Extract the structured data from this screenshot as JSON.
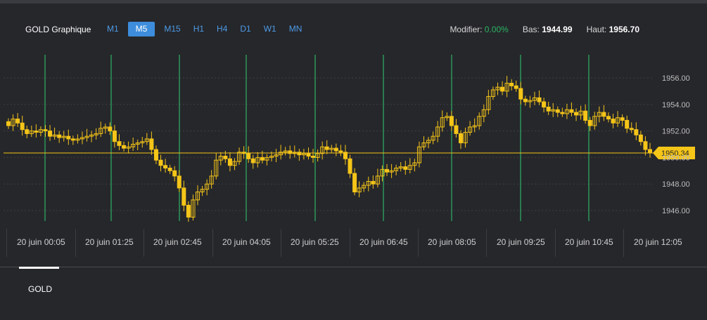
{
  "chart": {
    "title": "GOLD Graphique",
    "timeframes": [
      "M1",
      "M5",
      "M15",
      "H1",
      "H4",
      "D1",
      "W1",
      "MN"
    ],
    "active_timeframe": "M5",
    "stats": {
      "modifier_label": "Modifier:",
      "modifier_value": "0.00%",
      "low_label": "Bas:",
      "low_value": "1944.99",
      "high_label": "Haut:",
      "high_value": "1956.70"
    },
    "current_price": "1950.34",
    "price_axis_labels": [
      "1956.00",
      "1954.00",
      "1952.00",
      "1950.00",
      "1948.00",
      "1946.00"
    ],
    "date_labels": [
      "20 juin 00:05",
      "20 juin 01:25",
      "20 juin 02:45",
      "20 juin 04:05",
      "20 juin 05:25",
      "20 juin 06:45",
      "20 juin 08:05",
      "20 juin 09:25",
      "20 juin 10:45",
      "20 juin 12:05"
    ]
  },
  "tabs": [
    {
      "label": "GOLD"
    }
  ],
  "colors": {
    "background": "#26272b",
    "candle": "#f5c518",
    "current_line": "#f5c518",
    "session_line": "#2ecc71",
    "grid": "#3e3f44",
    "accent_blue": "#3d8ddc",
    "green_text": "#28b463"
  },
  "chart_data": {
    "type": "candlestick",
    "y_axis_ticks": [
      1946,
      1948,
      1950,
      1952,
      1954,
      1956
    ],
    "current_price": 1950.34,
    "close_series": [
      1952.4,
      1952.9,
      1952.6,
      1952.1,
      1951.8,
      1952.0,
      1951.9,
      1952.1,
      1952.0,
      1951.6,
      1951.7,
      1951.5,
      1951.6,
      1951.4,
      1951.3,
      1951.4,
      1951.5,
      1951.6,
      1951.7,
      1951.8,
      1952.2,
      1952.3,
      1952.0,
      1951.2,
      1950.9,
      1950.7,
      1950.8,
      1951.0,
      1951.1,
      1951.2,
      1951.4,
      1950.6,
      1949.8,
      1949.4,
      1949.2,
      1949.0,
      1948.6,
      1947.7,
      1946.4,
      1945.5,
      1946.8,
      1947.4,
      1947.6,
      1948.0,
      1948.6,
      1949.8,
      1950.1,
      1949.9,
      1949.4,
      1949.7,
      1950.4,
      1950.3,
      1949.9,
      1949.6,
      1950.0,
      1949.8,
      1950.0,
      1950.1,
      1950.2,
      1950.4,
      1950.5,
      1950.3,
      1950.4,
      1950.2,
      1950.3,
      1950.1,
      1950.0,
      1950.3,
      1950.8,
      1950.6,
      1950.7,
      1950.5,
      1950.4,
      1949.9,
      1948.8,
      1947.4,
      1947.7,
      1947.9,
      1948.2,
      1948.0,
      1948.6,
      1949.1,
      1948.9,
      1949.0,
      1949.2,
      1949.3,
      1949.1,
      1949.4,
      1949.6,
      1950.8,
      1951.1,
      1951.3,
      1951.6,
      1952.3,
      1953.0,
      1953.1,
      1952.4,
      1951.8,
      1951.1,
      1951.9,
      1952.3,
      1952.4,
      1953.1,
      1953.6,
      1954.6,
      1955.1,
      1955.3,
      1955.0,
      1955.6,
      1955.4,
      1955.2,
      1954.4,
      1954.2,
      1954.3,
      1954.5,
      1954.2,
      1953.8,
      1953.5,
      1953.6,
      1953.4,
      1953.3,
      1953.6,
      1953.4,
      1953.2,
      1953.5,
      1952.8,
      1952.4,
      1953.1,
      1953.4,
      1953.1,
      1952.9,
      1952.6,
      1953.0,
      1952.8,
      1952.2,
      1952.1,
      1951.7,
      1951.2,
      1950.6,
      1950.34
    ]
  },
  "scrollbar_hint": ""
}
